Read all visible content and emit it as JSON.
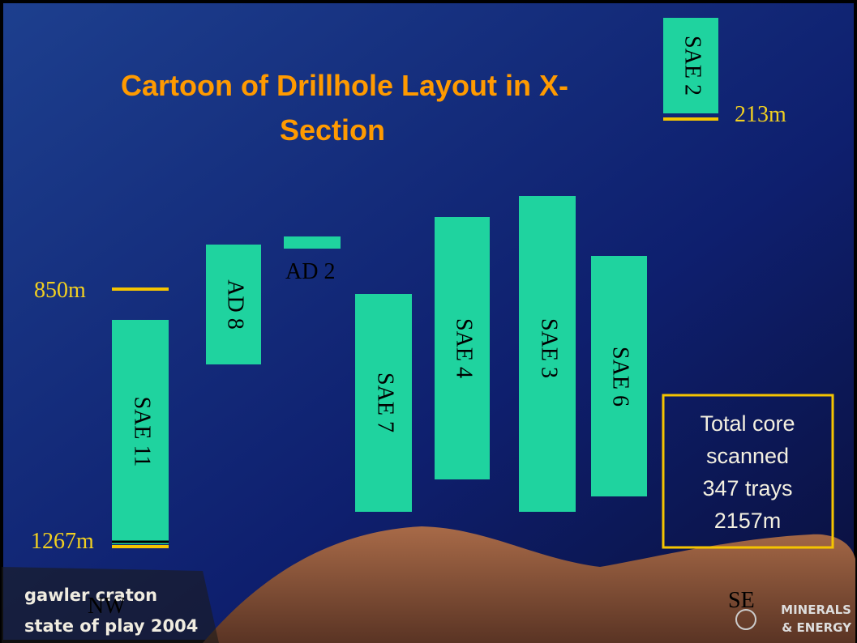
{
  "title": {
    "lines": [
      "Cartoon of Drillhole Layout in X-",
      "Section"
    ]
  },
  "drillholes": [
    {
      "label": "SAE 2"
    },
    {
      "label": "AD 2"
    },
    {
      "label": "AD 8"
    },
    {
      "label": "SAE 11"
    },
    {
      "label": "SAE 7"
    },
    {
      "label": "SAE 4"
    },
    {
      "label": "SAE 3"
    },
    {
      "label": "SAE 6"
    }
  ],
  "depth_markers": [
    {
      "label": "213m"
    },
    {
      "label": "850m"
    },
    {
      "label": "1267m"
    }
  ],
  "summary_box": {
    "lines": [
      "Total core",
      "scanned",
      "347 trays",
      "2157m"
    ]
  },
  "directions": {
    "left": "NW",
    "right": "SE"
  },
  "footer": {
    "left_lines": [
      "gawler craton",
      "state of play 2004"
    ],
    "right_lines": [
      "MINERALS",
      "& ENERGY"
    ]
  }
}
